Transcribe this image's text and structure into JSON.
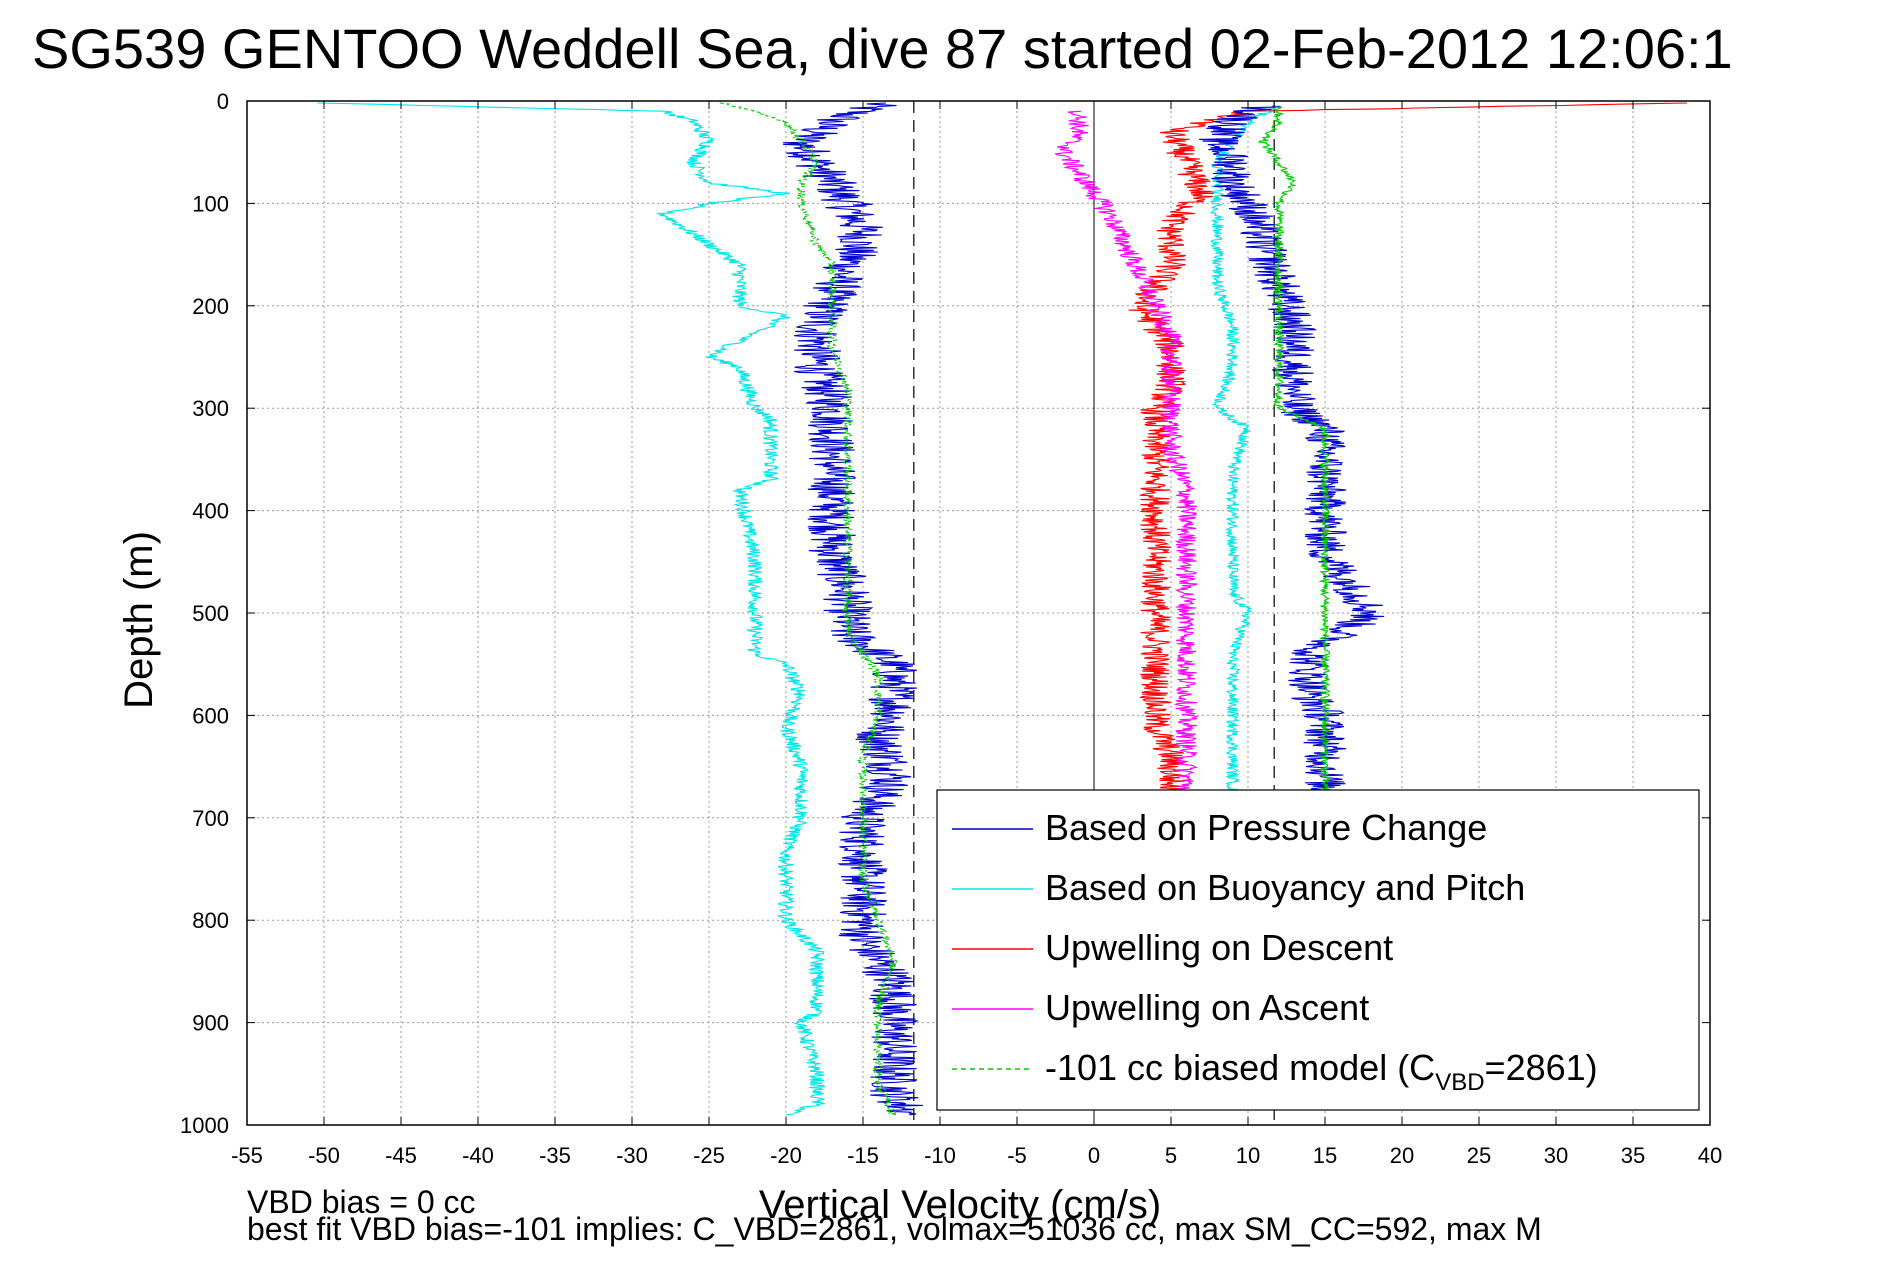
{
  "chart_data": {
    "type": "line",
    "title": "SG539 GENTOO Weddell Sea, dive 87 started 02-Feb-2012 12:06:1",
    "xlabel": "Vertical Velocity (cm/s)",
    "ylabel": "Depth (m)",
    "xlim": [
      -55,
      40
    ],
    "ylim": [
      0,
      1000
    ],
    "y_reversed": true,
    "grid": true,
    "legend_position": "bottom-right",
    "xticks": [
      "-55",
      "-50",
      "-45",
      "-40",
      "-35",
      "-30",
      "-25",
      "-20",
      "-15",
      "-10",
      "-5",
      "0",
      "5",
      "10",
      "15",
      "20",
      "25",
      "30",
      "35",
      "40"
    ],
    "yticks": [
      "0",
      "100",
      "200",
      "300",
      "400",
      "500",
      "600",
      "700",
      "800",
      "900",
      "1000"
    ],
    "reference_lines": {
      "zero_line": 0,
      "dashed_lines": [
        -11.7,
        11.7
      ]
    },
    "series": [
      {
        "name": "Based on Pressure Change",
        "color": "#0000cc",
        "noise": 1.6,
        "depth": [
          2,
          20,
          40,
          60,
          80,
          100,
          130,
          160,
          190,
          220,
          260,
          300,
          320,
          360,
          400,
          440,
          480,
          520,
          550,
          580,
          600,
          620,
          660,
          700,
          740,
          780,
          820,
          860,
          900,
          940,
          970,
          990
        ],
        "velocity": [
          -14,
          -17,
          -19,
          -18,
          -17,
          -16,
          -15,
          -16,
          -17,
          -18,
          -18,
          -17,
          -17,
          -17,
          -17,
          -17,
          -16,
          -16,
          -13,
          -13,
          -13,
          -14,
          -13,
          -15,
          -15,
          -15,
          -15,
          -13,
          -13,
          -13,
          -13,
          -12
        ]
      },
      {
        "name": "Based on Buoyancy and Pitch",
        "color": "#00e6e6",
        "noise": 0.5,
        "depth": [
          2,
          10,
          20,
          40,
          60,
          80,
          90,
          100,
          110,
          140,
          160,
          200,
          210,
          250,
          260,
          300,
          310,
          370,
          380,
          450,
          500,
          540,
          550,
          580,
          610,
          650,
          700,
          730,
          740,
          800,
          830,
          850,
          890,
          900,
          950,
          980,
          990
        ],
        "velocity": [
          -50,
          -28,
          -26,
          -25,
          -26,
          -25,
          -20,
          -25,
          -28,
          -25,
          -23,
          -23,
          -20,
          -25,
          -23,
          -22,
          -21,
          -21,
          -23,
          -22,
          -22,
          -22,
          -20,
          -19,
          -20,
          -19,
          -19,
          -20,
          -20,
          -20,
          -18,
          -18,
          -18,
          -19,
          -18,
          -18,
          -20
        ]
      },
      {
        "name": "Upwelling on Descent",
        "color": "#ff0000",
        "noise": 1.0,
        "depth": [
          2,
          10,
          30,
          60,
          90,
          120,
          160,
          200,
          240,
          280,
          300,
          340,
          380,
          420,
          460,
          500,
          540,
          580,
          610,
          640,
          680
        ],
        "velocity": [
          38,
          10,
          5,
          6,
          7,
          5,
          5,
          3,
          5,
          5,
          4,
          4,
          4,
          4,
          4,
          4,
          4,
          4,
          4,
          5,
          5
        ]
      },
      {
        "name": "Upwelling on Ascent",
        "color": "#ff00ff",
        "noise": 0.7,
        "depth": [
          10,
          30,
          50,
          70,
          90,
          110,
          140,
          170,
          200,
          230,
          260,
          300,
          340,
          380,
          420,
          460,
          500,
          540,
          580,
          620,
          660,
          680
        ],
        "velocity": [
          -1,
          -1,
          -2,
          -1,
          0,
          1,
          2,
          3,
          4,
          5,
          5,
          5,
          5,
          6,
          6,
          6,
          6,
          6,
          6,
          6,
          6,
          6
        ]
      },
      {
        "name": "-101 cc biased model (C_VBD=2861)",
        "color": "#00cc00",
        "noise": 0.3,
        "depth": [
          2,
          20,
          40,
          60,
          80,
          100,
          140,
          160,
          200,
          240,
          280,
          300,
          320,
          360,
          380,
          400,
          440,
          480,
          520,
          560,
          580,
          600,
          640,
          680,
          720,
          760,
          800,
          840,
          880,
          920,
          960,
          990
        ],
        "velocity": [
          -24,
          -20,
          -19,
          -18,
          -19,
          -19,
          -18,
          -17,
          -17,
          -17,
          -16,
          -16,
          -16,
          -16,
          -16,
          -16,
          -16,
          -16,
          -16,
          -14,
          -14,
          -14,
          -15,
          -15,
          -15,
          -15,
          -14,
          -13,
          -14,
          -14,
          -14,
          -13
        ]
      },
      {
        "name": "",
        "color": "#00e6e6",
        "noise": 0.4,
        "depth": [
          5,
          20,
          40,
          60,
          100,
          140,
          180,
          220,
          260,
          300,
          320,
          360,
          400,
          440,
          480,
          500,
          540,
          580,
          600,
          640,
          680
        ],
        "velocity": [
          12,
          10,
          9,
          8,
          8,
          8,
          8,
          9,
          9,
          8,
          10,
          9,
          9,
          9,
          9,
          10,
          9,
          9,
          9,
          9,
          9
        ]
      },
      {
        "name": "",
        "color": "#0000cc",
        "noise": 1.4,
        "depth": [
          5,
          20,
          40,
          60,
          80,
          100,
          140,
          180,
          220,
          260,
          300,
          320,
          360,
          400,
          440,
          480,
          500,
          540,
          580,
          600,
          640,
          680
        ],
        "velocity": [
          11,
          9,
          8,
          9,
          9,
          10,
          11,
          12,
          13,
          13,
          13,
          15,
          15,
          15,
          15,
          17,
          18,
          14,
          14,
          15,
          15,
          15
        ]
      },
      {
        "name": "",
        "color": "#00cc00",
        "noise": 0.3,
        "depth": [
          5,
          20,
          40,
          60,
          80,
          100,
          140,
          180,
          200,
          240,
          280,
          300,
          320,
          360,
          400,
          440,
          480,
          500,
          520,
          560,
          600,
          640,
          680
        ],
        "velocity": [
          12,
          12,
          11,
          12,
          13,
          12,
          12,
          12,
          12,
          12,
          12,
          12,
          15,
          15,
          15,
          15,
          15,
          15,
          15,
          15,
          15,
          15,
          15
        ]
      }
    ],
    "legend": [
      {
        "label": "Based on Pressure Change",
        "color": "#0000cc",
        "dashed": false
      },
      {
        "label": "Based on Buoyancy and Pitch",
        "color": "#00e6e6",
        "dashed": false
      },
      {
        "label": "Upwelling on Descent",
        "color": "#ff0000",
        "dashed": false
      },
      {
        "label": "Upwelling on Ascent",
        "color": "#ff00ff",
        "dashed": false
      },
      {
        "label": "-101 cc biased model (C",
        "sub": "VBD",
        "tail": "=2861)",
        "color": "#00cc00",
        "dashed": true
      }
    ],
    "annotations": {
      "line1": "VBD bias = 0 cc",
      "line2": "best fit VBD bias=-101 implies: C_VBD=2861, volmax=51036 cc, max SM_CC=592, max M"
    }
  }
}
